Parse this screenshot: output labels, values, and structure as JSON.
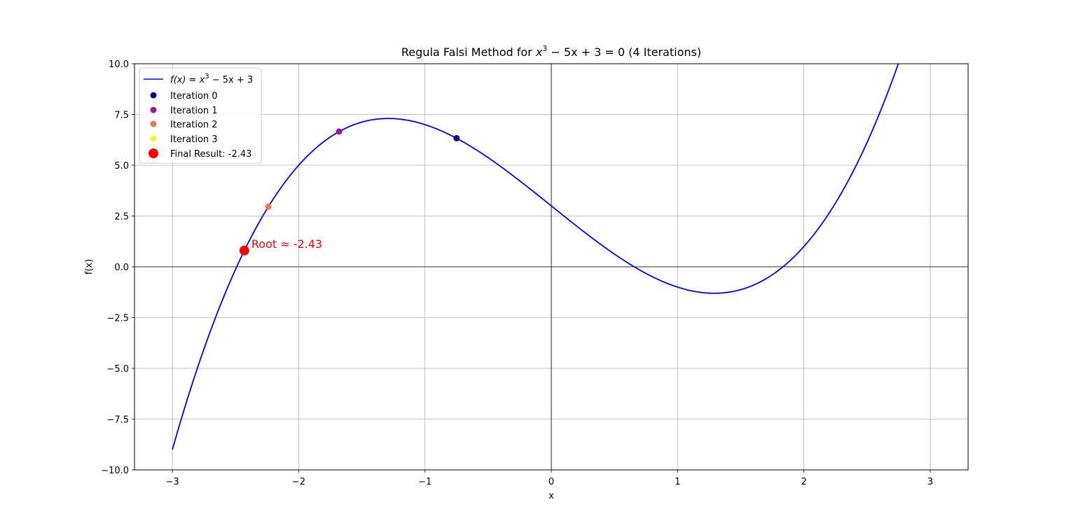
{
  "chart_data": {
    "type": "line",
    "title": {
      "prefix": "Regula Falsi Method for ",
      "math_base": "x",
      "math_sup": "3",
      "math_rest": " − 5x + 3 = 0",
      "suffix": " (4 Iterations)"
    },
    "xlabel": "x",
    "ylabel": "f(x)",
    "xlim": [
      -3.3,
      3.3
    ],
    "ylim": [
      -10,
      10
    ],
    "xticks": [
      -3,
      -2,
      -1,
      0,
      1,
      2,
      3
    ],
    "xtick_labels": [
      "−3",
      "−2",
      "−1",
      "0",
      "1",
      "2",
      "3"
    ],
    "yticks": [
      -10,
      -7.5,
      -5,
      -2.5,
      0,
      2.5,
      5,
      7.5,
      10
    ],
    "ytick_labels": [
      "−10.0",
      "−7.5",
      "−5.0",
      "−2.5",
      "0.0",
      "2.5",
      "5.0",
      "7.5",
      "10.0"
    ],
    "grid": true,
    "legend_position": "top-left",
    "function": {
      "label_base": "f(x) = x",
      "label_sup": "3",
      "label_rest": " − 5x + 3",
      "coefficients": [
        1,
        0,
        -5,
        3
      ],
      "x_range": [
        -3,
        3
      ],
      "color": "#0000ff"
    },
    "iterations": [
      {
        "label": "Iteration 0",
        "x": -0.75,
        "y": 6.33,
        "color": "#0d0887"
      },
      {
        "label": "Iteration 1",
        "x": -1.68,
        "y": 6.66,
        "color": "#9c179e"
      },
      {
        "label": "Iteration 2",
        "x": -2.24,
        "y": 2.96,
        "color": "#ed7953"
      },
      {
        "label": "Iteration 3",
        "x": -2.43,
        "y": 0.8,
        "color": "#f0f921"
      }
    ],
    "final": {
      "label": "Final Result: -2.43",
      "x": -2.43,
      "y": 0.8,
      "color": "#ff0000"
    },
    "annotation": {
      "text": "Root ≈ -2.43",
      "x": -2.43,
      "y": 0.8,
      "color": "#ff0000"
    }
  }
}
